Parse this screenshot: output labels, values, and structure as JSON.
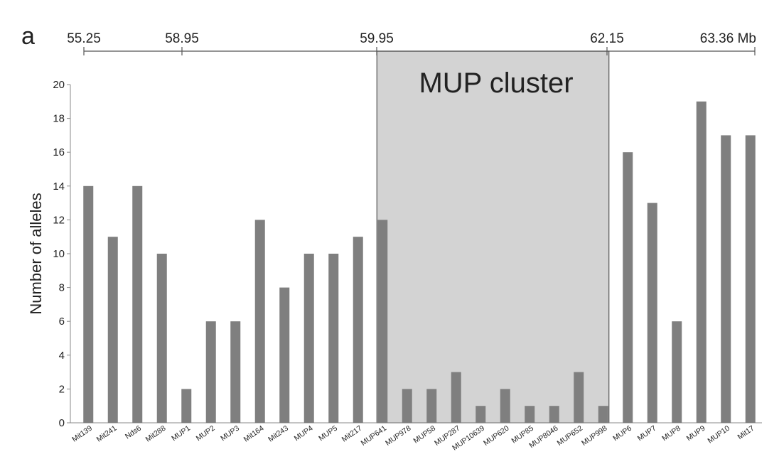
{
  "panel_label": "a",
  "colors": {
    "bar": "#7f7f7f",
    "cluster_fill": "#d3d3d3",
    "cluster_stroke": "#555555",
    "axis": "#8a8a8a",
    "text": "#222222"
  },
  "chart_data": {
    "type": "bar",
    "title": "",
    "xlabel": "",
    "ylabel": "Number of alleles",
    "ylim": [
      0,
      20
    ],
    "yticks": [
      0,
      2,
      4,
      6,
      8,
      10,
      12,
      14,
      16,
      18,
      20
    ],
    "grid": false,
    "categories": [
      "Mit139",
      "Mit241",
      "Nds6",
      "Mit288",
      "MUP1",
      "MUP2",
      "MUP3",
      "Mit164",
      "Mit243",
      "MUP4",
      "MUP5",
      "Mit217",
      "MUP641",
      "MUP978",
      "MUP58",
      "MUP287",
      "MUP10639",
      "MUP620",
      "MUP85",
      "MUP8046",
      "MUP652",
      "MUP998",
      "MUP6",
      "MUP7",
      "MUP8",
      "MUP9",
      "MUP10",
      "Mit17"
    ],
    "values": [
      14,
      11,
      14,
      10,
      2,
      6,
      6,
      12,
      8,
      10,
      10,
      11,
      12,
      2,
      2,
      3,
      1,
      2,
      1,
      1,
      3,
      1,
      16,
      13,
      6,
      19,
      17,
      17
    ],
    "genome_scale": {
      "positions": [
        "55.25",
        "58.95",
        "59.95",
        "62.15",
        "63.36"
      ],
      "unit": "Mb"
    },
    "annotation": {
      "label": "MUP cluster",
      "from_category": "MUP641",
      "to_category": "MUP998"
    }
  }
}
